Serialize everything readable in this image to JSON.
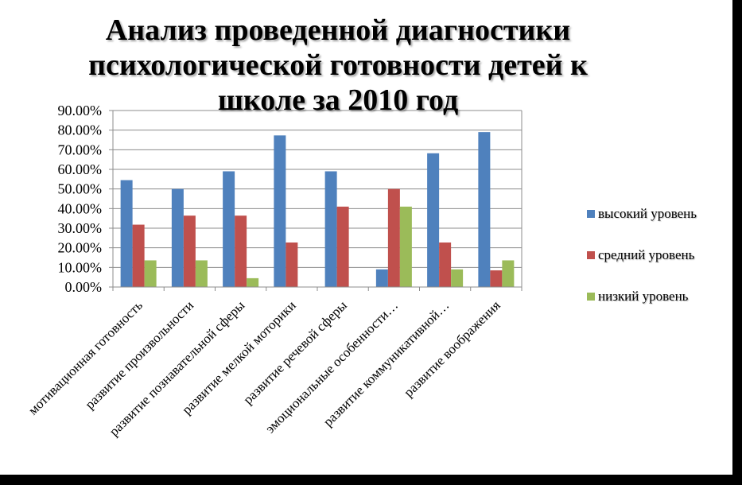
{
  "chart_data": {
    "type": "bar",
    "title": "Анализ проведенной диагностики психологической готовности детей к школе за 2010 год",
    "title_lines": [
      "Анализ проведенной диагностики",
      "психологической готовности детей к",
      "школе за 2010 год"
    ],
    "categories": [
      "мотивационная готовность",
      "развитие произвольности",
      "развитие познавательной сферы",
      "развитие мелкой моторики",
      "развитие речевой сферы",
      "эмоциональные особенности…",
      "развитие коммуникативной…",
      "развитие воображения"
    ],
    "series": [
      {
        "name": "высокий уровень",
        "color": "#4F81BD",
        "values": [
          0.545,
          0.5,
          0.59,
          0.773,
          0.59,
          0.09,
          0.682,
          0.79
        ]
      },
      {
        "name": "средний уровень",
        "color": "#C0504D",
        "values": [
          0.318,
          0.364,
          0.364,
          0.227,
          0.41,
          0.5,
          0.227,
          0.085
        ]
      },
      {
        "name": "низкий уровень",
        "color": "#9BBB59",
        "values": [
          0.136,
          0.136,
          0.045,
          0,
          0,
          0.41,
          0.09,
          0.136
        ]
      }
    ],
    "ylim": [
      0,
      0.9
    ],
    "yticks": [
      "0.00%",
      "10.00%",
      "20.00%",
      "30.00%",
      "40.00%",
      "50.00%",
      "60.00%",
      "70.00%",
      "80.00%",
      "90.00%"
    ],
    "grid": true,
    "legend_position": "right",
    "xlabel": "",
    "ylabel": ""
  }
}
